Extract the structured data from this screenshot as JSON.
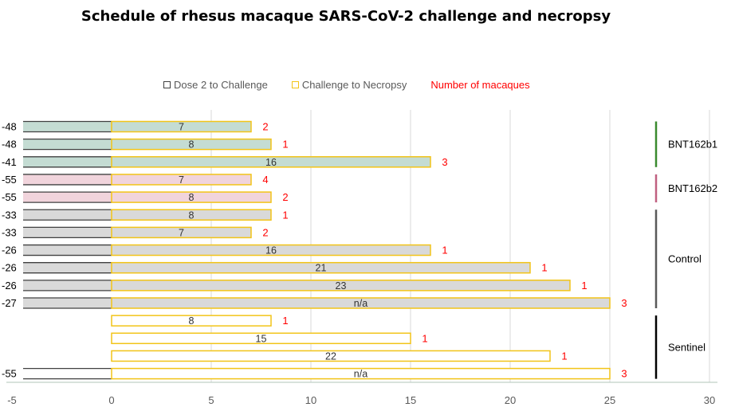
{
  "chart_data": {
    "type": "bar",
    "orientation": "horizontal",
    "stacked": true,
    "title": "Schedule of rhesus macaque SARS-CoV-2 challenge and necropsy",
    "legend": [
      {
        "name": "Dose 2 to Challenge",
        "color": "#404040",
        "style": "outline"
      },
      {
        "name": "Challenge to Necropsy",
        "color": "#f2c418",
        "style": "outline"
      },
      {
        "name": "Number of macaques",
        "color": "#ff0000",
        "style": "text"
      }
    ],
    "legend_position": "top",
    "x_ticks": [
      -5,
      0,
      5,
      10,
      15,
      20,
      25,
      30
    ],
    "xlim": [
      -5,
      30
    ],
    "grid": true,
    "rows": [
      {
        "label": "-48",
        "dose2": -48,
        "necropsy": 7,
        "bar_label": "7",
        "count": "2",
        "fill": "#c4dcd3"
      },
      {
        "label": "-48",
        "dose2": -48,
        "necropsy": 8,
        "bar_label": "8",
        "count": "1",
        "fill": "#c4dcd3"
      },
      {
        "label": "-41",
        "dose2": -41,
        "necropsy": 16,
        "bar_label": "16",
        "count": "3",
        "fill": "#c4dcd3"
      },
      {
        "label": "-55",
        "dose2": -55,
        "necropsy": 7,
        "bar_label": "7",
        "count": "4",
        "fill": "#f1d4dc"
      },
      {
        "label": "-55",
        "dose2": -55,
        "necropsy": 8,
        "bar_label": "8",
        "count": "2",
        "fill": "#f1d4dc"
      },
      {
        "label": "-33",
        "dose2": -33,
        "necropsy": 8,
        "bar_label": "8",
        "count": "1",
        "fill": "#d9d9d9"
      },
      {
        "label": "-33",
        "dose2": -33,
        "necropsy": 7,
        "bar_label": "7",
        "count": "2",
        "fill": "#d9d9d9"
      },
      {
        "label": "-26",
        "dose2": -26,
        "necropsy": 16,
        "bar_label": "16",
        "count": "1",
        "fill": "#d9d9d9"
      },
      {
        "label": "-26",
        "dose2": -26,
        "necropsy": 21,
        "bar_label": "21",
        "count": "1",
        "fill": "#d9d9d9"
      },
      {
        "label": "-26",
        "dose2": -26,
        "necropsy": 23,
        "bar_label": "23",
        "count": "1",
        "fill": "#d9d9d9"
      },
      {
        "label": "-27",
        "dose2": -27,
        "necropsy": 25,
        "bar_label": "n/a",
        "count": "3",
        "fill": "#d9d9d9"
      },
      {
        "label": "",
        "dose2": null,
        "necropsy": 8,
        "bar_label": "8",
        "count": "1",
        "fill": "#ffffff"
      },
      {
        "label": "",
        "dose2": null,
        "necropsy": 15,
        "bar_label": "15",
        "count": "1",
        "fill": "#ffffff"
      },
      {
        "label": "",
        "dose2": null,
        "necropsy": 22,
        "bar_label": "22",
        "count": "1",
        "fill": "#ffffff"
      },
      {
        "label": "-55",
        "dose2": -55,
        "necropsy": 25,
        "bar_label": "n/a",
        "count": "3",
        "fill": "#ffffff"
      }
    ],
    "groups": [
      {
        "name": "BNT162b1",
        "color": "#3a8a2e",
        "first_row": 0,
        "last_row": 2
      },
      {
        "name": "BNT162b2",
        "color": "#c06080",
        "first_row": 3,
        "last_row": 4
      },
      {
        "name": "Control",
        "color": "#595959",
        "first_row": 5,
        "last_row": 10
      },
      {
        "name": "Sentinel",
        "color": "#000000",
        "first_row": 11,
        "last_row": 14
      }
    ]
  }
}
